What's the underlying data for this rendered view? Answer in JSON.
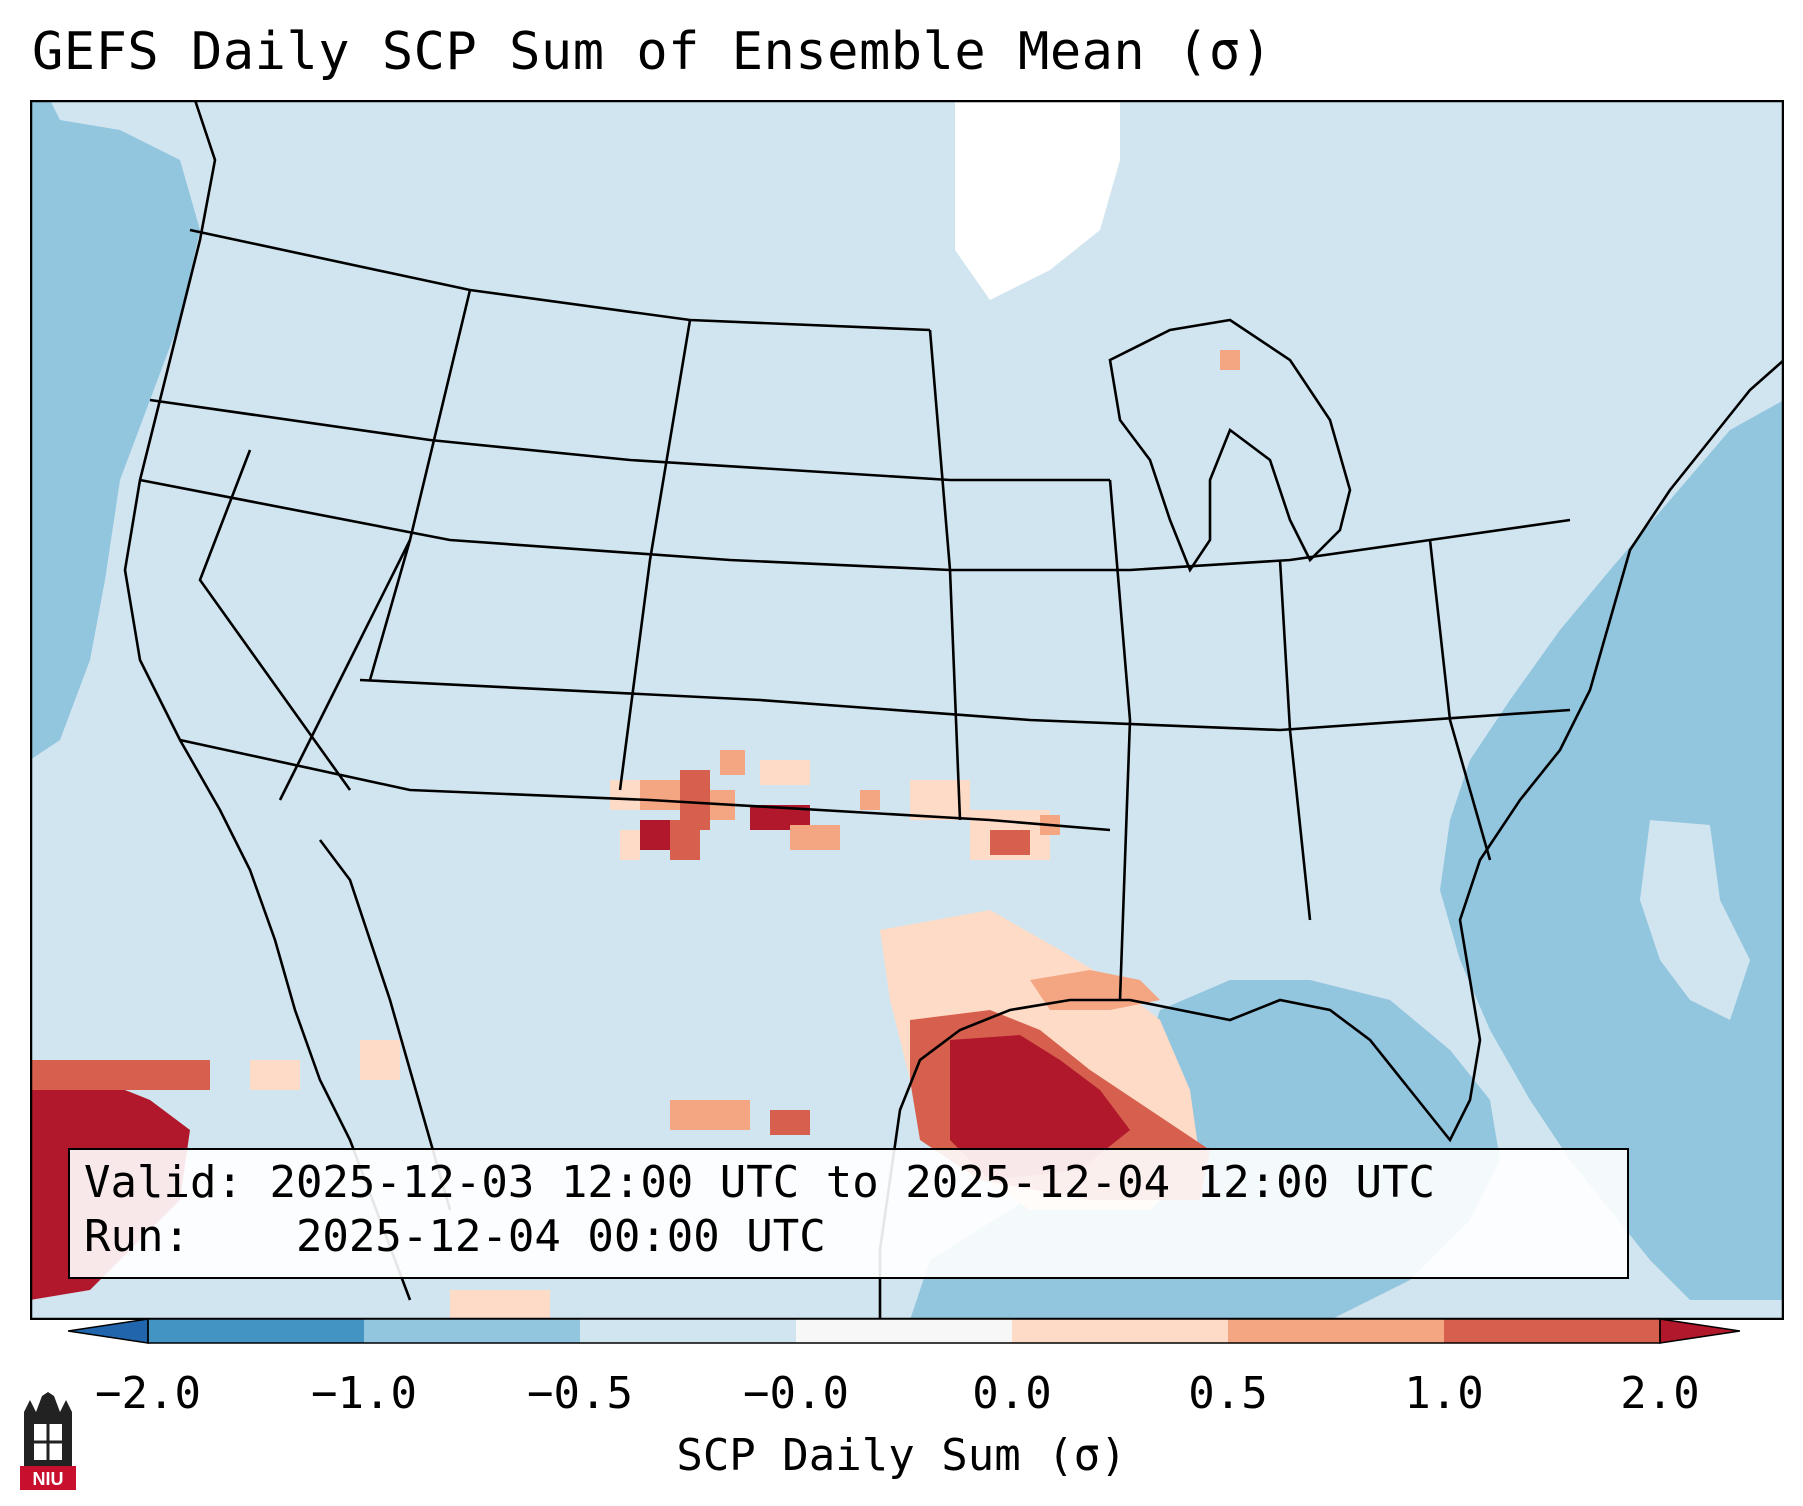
{
  "title": "GEFS Daily SCP Sum of Ensemble Mean (σ)",
  "info": {
    "valid_label": "Valid:",
    "valid_value": "2025-12-03 12:00 UTC to 2025-12-04 12:00 UTC",
    "run_label": "Run:",
    "run_value": "2025-12-04 00:00 UTC"
  },
  "colorbar": {
    "label": "SCP Daily Sum (σ)",
    "ticks": [
      "−2.0",
      "−1.0",
      "−0.5",
      "−0.0",
      "0.0",
      "0.5",
      "1.0",
      "2.0"
    ],
    "bins": [
      {
        "range": "-2.0 to -1.0",
        "color": "#4393c3"
      },
      {
        "range": "-1.0 to -0.5",
        "color": "#92c5de"
      },
      {
        "range": "-0.5 to -0.0",
        "color": "#d1e5f0"
      },
      {
        "range": "-0.0 to 0.0",
        "color": "#f7f7f7"
      },
      {
        "range": "0.0 to 0.5",
        "color": "#fddbc7"
      },
      {
        "range": "0.5 to 1.0",
        "color": "#f4a582"
      },
      {
        "range": "1.0 to 2.0",
        "color": "#d6604d"
      }
    ],
    "under_color": "#2166ac",
    "over_color": "#b2182b"
  },
  "map": {
    "background_color": "#d1e5f0",
    "ocean_color": "#92c5de",
    "high_color": "#b2182b"
  },
  "logo": {
    "text": "NIU"
  }
}
